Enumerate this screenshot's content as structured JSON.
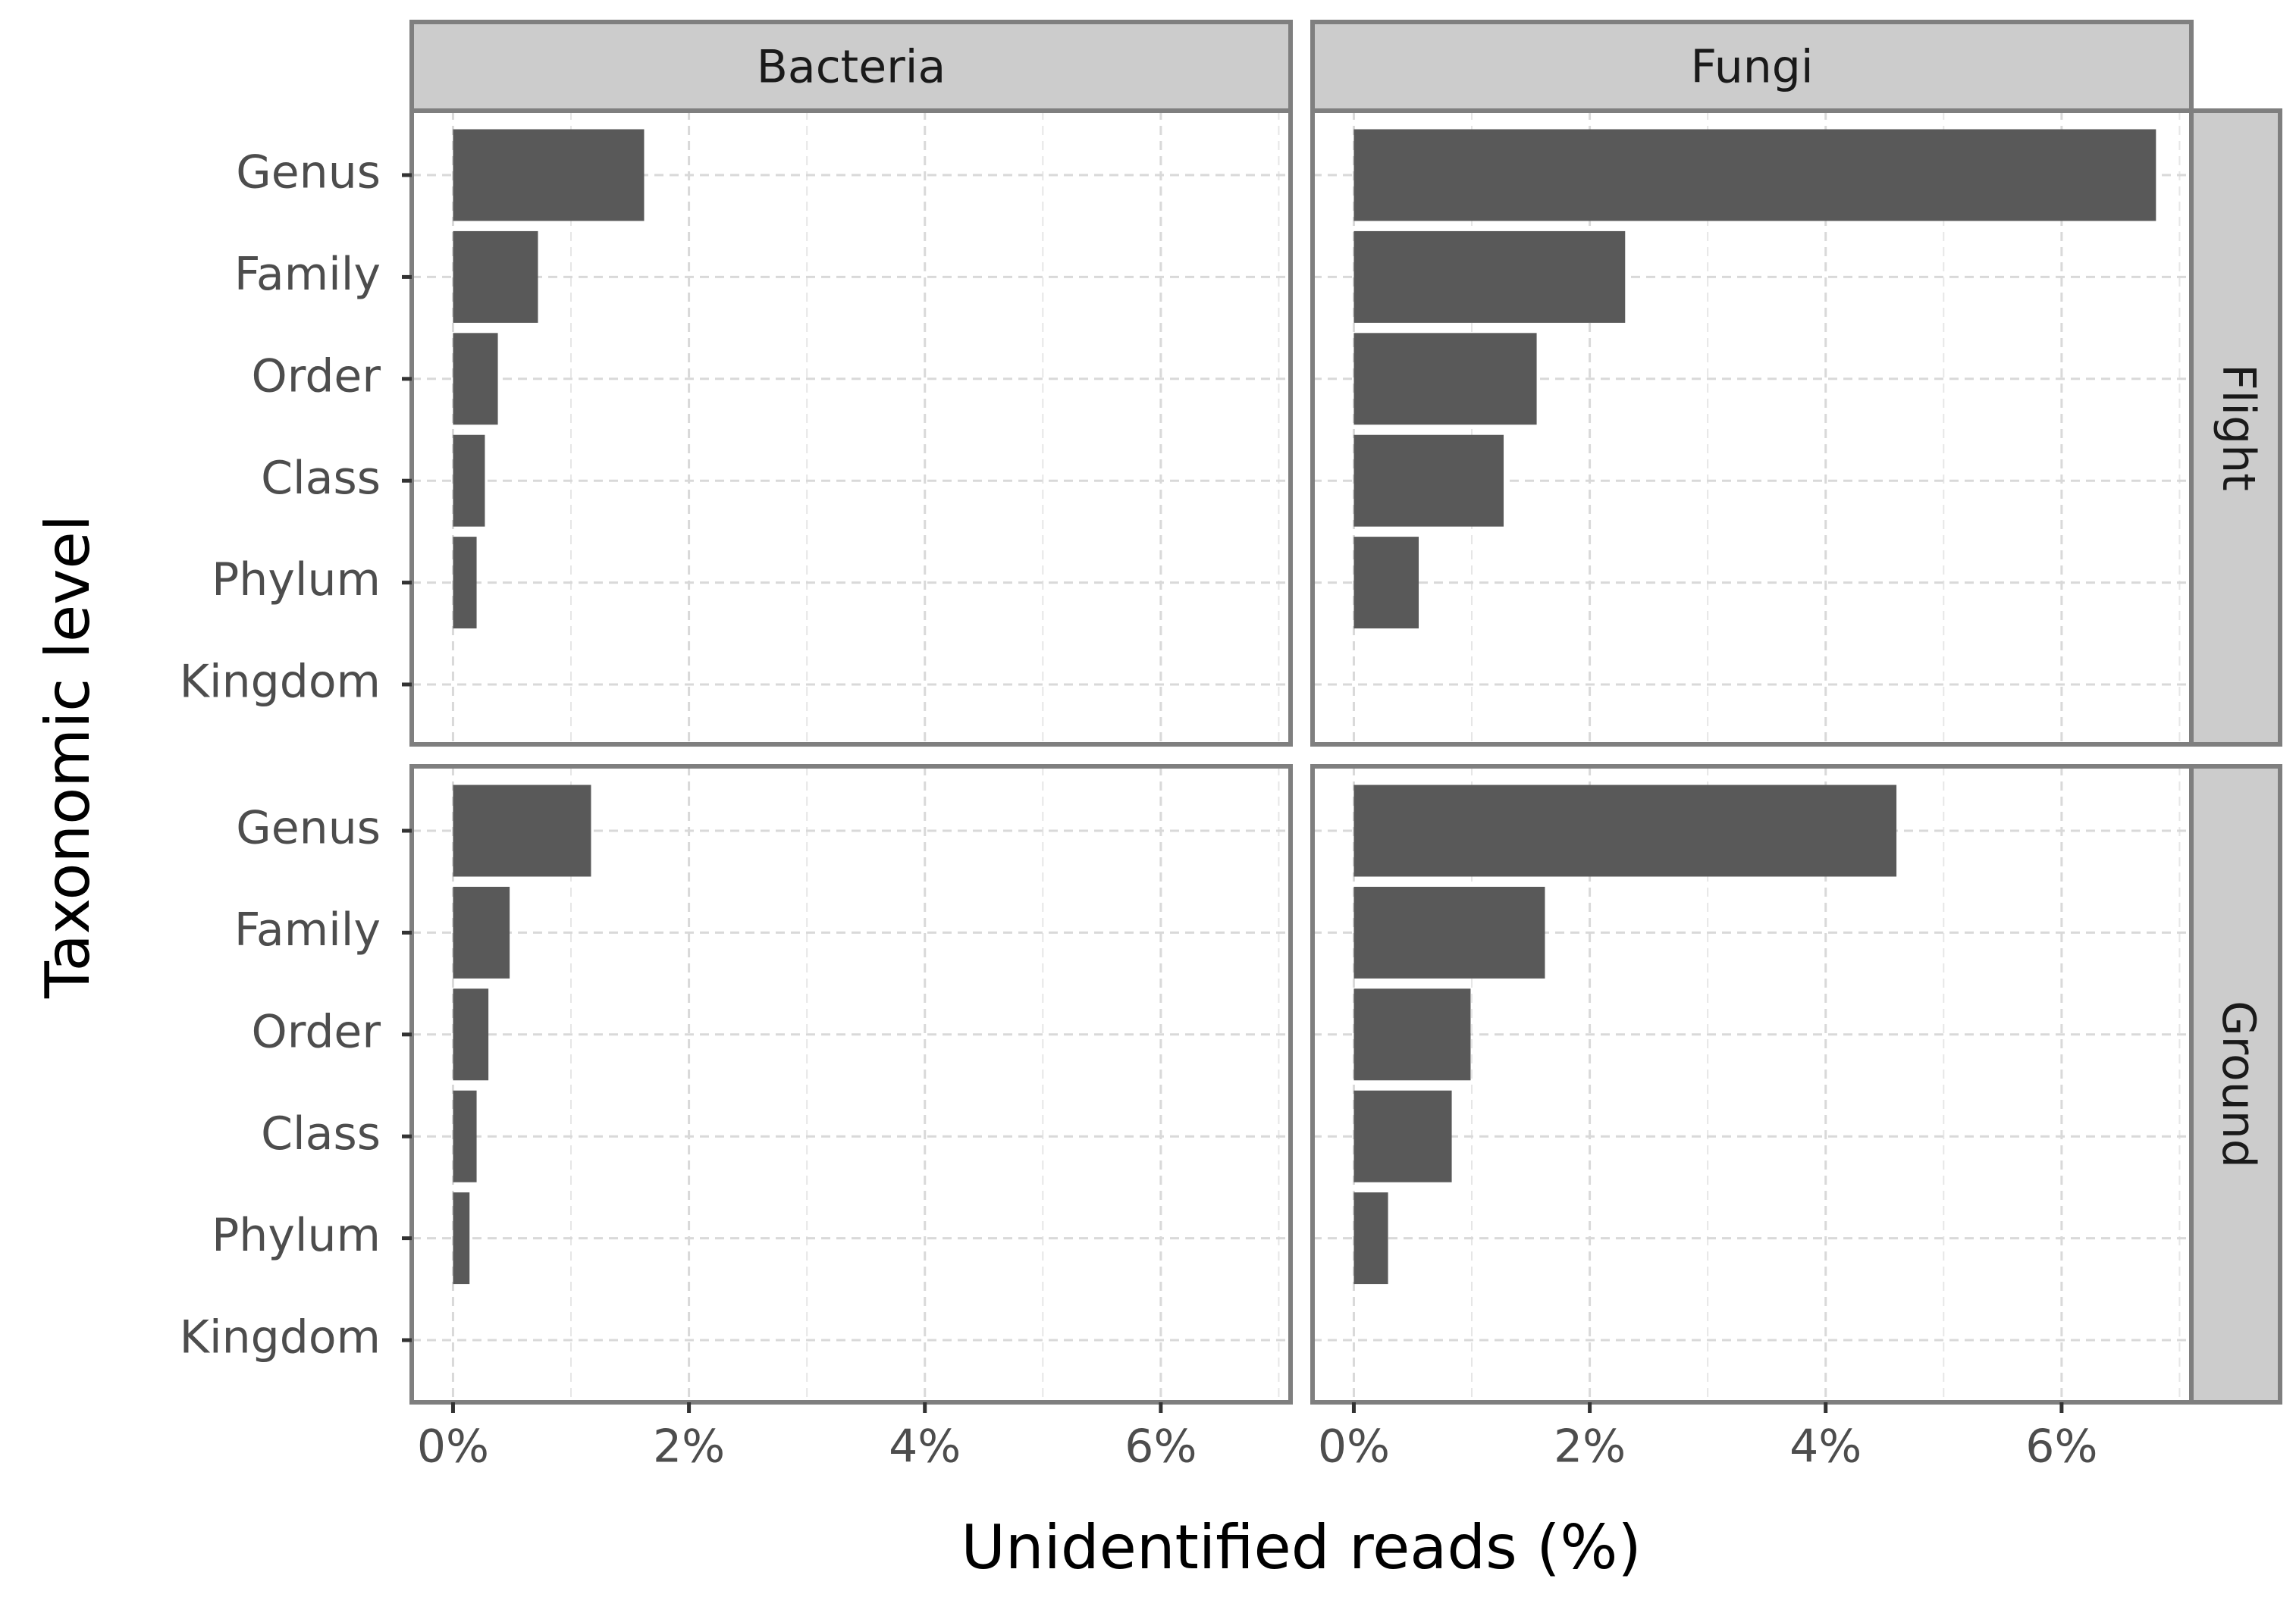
{
  "chart_data": {
    "type": "bar",
    "orientation": "horizontal",
    "facet_columns": [
      "Bacteria",
      "Fungi"
    ],
    "facet_rows": [
      "Flight",
      "Ground"
    ],
    "categories": [
      "Kingdom",
      "Phylum",
      "Class",
      "Order",
      "Family",
      "Genus"
    ],
    "xlabel": "Unidentified reads (%)",
    "ylabel": "Taxonomic level",
    "x_ticks": [
      "0%",
      "2%",
      "4%",
      "6%"
    ],
    "xlim": [
      -0.35,
      7.1
    ],
    "grid": true,
    "bar_color": "#595959",
    "panels": [
      {
        "column": "Bacteria",
        "row": "Flight",
        "values": [
          0,
          0.2,
          0.27,
          0.38,
          0.72,
          1.62
        ]
      },
      {
        "column": "Fungi",
        "row": "Flight",
        "values": [
          0,
          0.55,
          1.27,
          1.55,
          2.3,
          6.8
        ]
      },
      {
        "column": "Bacteria",
        "row": "Ground",
        "values": [
          0,
          0.14,
          0.2,
          0.3,
          0.48,
          1.17
        ]
      },
      {
        "column": "Fungi",
        "row": "Ground",
        "values": [
          0,
          0.29,
          0.83,
          0.99,
          1.62,
          4.6
        ]
      }
    ]
  }
}
